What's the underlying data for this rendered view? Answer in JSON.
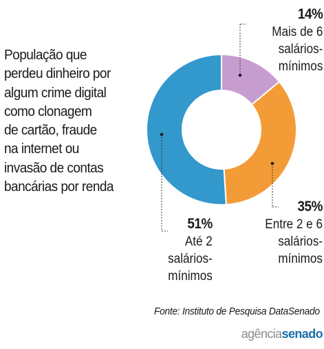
{
  "title_lines": [
    "População que",
    "perdeu dinheiro por",
    "algum crime digital",
    "como clonagem",
    "de cartão, fraude",
    "na internet ou",
    "invasão de contas",
    "bancárias por renda"
  ],
  "chart_data": {
    "type": "pie",
    "variant": "donut",
    "title": "População que perdeu dinheiro por algum crime digital como clonagem de cartão, fraude na internet ou invasão de contas bancárias por renda",
    "slices": [
      {
        "value": 14,
        "pct_label": "14%",
        "label_lines": [
          "Mais de 6",
          "salários-",
          "mínimos"
        ],
        "color": "#c79dcf"
      },
      {
        "value": 35,
        "pct_label": "35%",
        "label_lines": [
          "Entre 2 e 6",
          "salários-",
          "mínimos"
        ],
        "color": "#f39c37"
      },
      {
        "value": 51,
        "pct_label": "51%",
        "label_lines": [
          "Até 2",
          "salários-",
          "mínimos"
        ],
        "color": "#3398cc"
      }
    ]
  },
  "source": "Fonte: Instituto de Pesquisa DataSenado",
  "logo": {
    "part1": "agência",
    "part2": "senado"
  }
}
